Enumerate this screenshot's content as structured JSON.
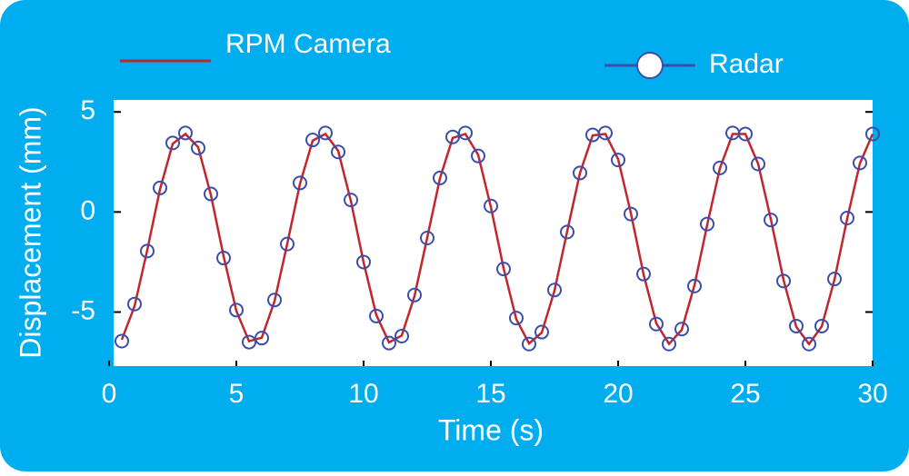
{
  "chart_data": {
    "type": "line",
    "xlabel": "Time (s)",
    "ylabel": "Displacement (mm)",
    "x": [
      0.5,
      1,
      1.5,
      2,
      2.5,
      3,
      3.5,
      4,
      4.5,
      5,
      5.5,
      6,
      6.5,
      7,
      7.5,
      8,
      8.5,
      9,
      9.5,
      10,
      10.5,
      11,
      11.5,
      12,
      12.5,
      13,
      13.5,
      14,
      14.5,
      15,
      15.5,
      16,
      16.5,
      17,
      17.5,
      18,
      18.5,
      19,
      19.5,
      20,
      20.5,
      21,
      21.5,
      22,
      22.5,
      23,
      23.5,
      24,
      24.5,
      25,
      25.5,
      26,
      26.5,
      27,
      27.5,
      28,
      28.5,
      29,
      29.5,
      30
    ],
    "series": [
      {
        "name": "RPM Camera",
        "color": "#c0272d",
        "marker": "none",
        "values": [
          -6.38,
          -4.71,
          -1.9,
          1.13,
          3.41,
          3.9,
          3.24,
          0.85,
          -2.21,
          -4.94,
          -6.46,
          -6.28,
          -4.46,
          -1.59,
          1.41,
          3.57,
          3.9,
          3.06,
          0.55,
          -2.52,
          -5.15,
          -6.52,
          -6.17,
          -4.2,
          -1.28,
          1.68,
          3.7,
          3.9,
          2.86,
          0.25,
          -2.81,
          -5.36,
          -6.57,
          -6.03,
          -3.93,
          -0.96,
          1.94,
          3.83,
          3.9,
          2.64,
          -0.05,
          -3.12,
          -5.56,
          -6.59,
          -5.89,
          -3.66,
          -0.64,
          2.19,
          3.9,
          3.9,
          2.41,
          -0.36,
          -3.4,
          -5.74,
          -6.6,
          -5.72,
          -3.38,
          -0.33,
          2.43,
          3.9
        ]
      },
      {
        "name": "Radar",
        "color": "#3b4fa8",
        "marker": "circle",
        "values": [
          -6.45,
          -4.6,
          -1.95,
          1.2,
          3.45,
          3.95,
          3.2,
          0.9,
          -2.3,
          -4.9,
          -6.5,
          -6.3,
          -4.4,
          -1.6,
          1.45,
          3.6,
          3.95,
          3.0,
          0.6,
          -2.5,
          -5.2,
          -6.55,
          -6.2,
          -4.15,
          -1.3,
          1.7,
          3.75,
          3.95,
          2.8,
          0.3,
          -2.85,
          -5.3,
          -6.6,
          -6.0,
          -3.9,
          -1.0,
          1.95,
          3.85,
          3.95,
          2.6,
          -0.1,
          -3.1,
          -5.6,
          -6.6,
          -5.85,
          -3.7,
          -0.6,
          2.2,
          3.95,
          3.9,
          2.4,
          -0.4,
          -3.45,
          -5.7,
          -6.6,
          -5.7,
          -3.35,
          -0.3,
          2.45,
          3.9
        ]
      }
    ],
    "xlim": [
      0,
      30
    ],
    "ylim": [
      -7.7,
      5.6
    ],
    "xticks": [
      0,
      5,
      10,
      15,
      20,
      25,
      30
    ],
    "yticks": [
      -5,
      0,
      5
    ]
  }
}
